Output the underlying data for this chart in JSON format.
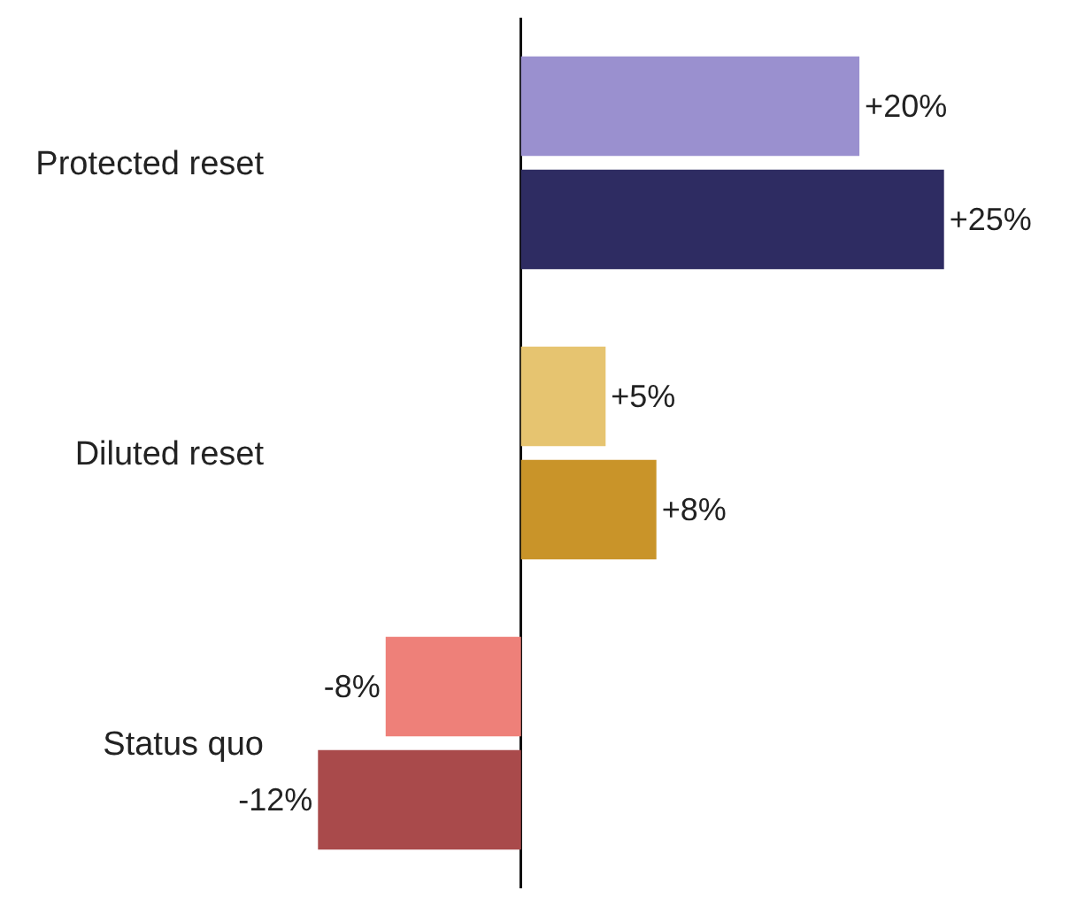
{
  "chart_data": {
    "type": "bar",
    "orientation": "horizontal",
    "categories": [
      "Protected reset",
      "Diluted reset",
      "Status quo"
    ],
    "series": [
      {
        "colors": [
          "#9a90cf",
          "#e6c470",
          "#ee8079"
        ],
        "values": [
          20,
          5,
          -8
        ],
        "value_labels": [
          "+20%",
          "+5%",
          "-8%"
        ]
      },
      {
        "colors": [
          "#2e2c62",
          "#c99429",
          "#a94a4b"
        ],
        "values": [
          25,
          8,
          -12
        ],
        "value_labels": [
          "+25%",
          "+8%",
          "-12%"
        ]
      }
    ],
    "tick_labels": "y"
  }
}
